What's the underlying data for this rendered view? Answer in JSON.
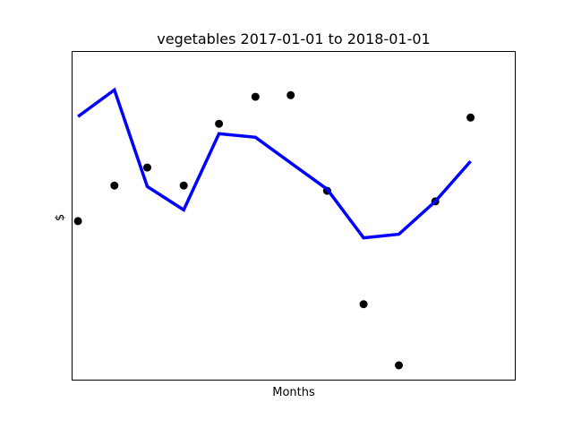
{
  "chart_data": {
    "type": "line",
    "title": "vegetables 2017-01-01 to 2018-01-01",
    "xlabel": "Months",
    "ylabel": "$",
    "x": [
      "2017-01-01",
      "2017-02-01",
      "2017-03-01",
      "2017-04-01",
      "2017-05-01",
      "2017-06-01",
      "2017-07-01",
      "2017-08-01",
      "2017-09-01",
      "2017-10-01",
      "2017-11-01",
      "2017-12-01"
    ],
    "xlim": [
      "2016-12-27",
      "2018-01-08"
    ],
    "ylim": [
      0,
      100
    ],
    "grid": false,
    "x_ticks_visible": false,
    "y_ticks_visible": false,
    "series": [
      {
        "style": "markers",
        "color": "#000000",
        "values": [
          48.4,
          59.2,
          64.7,
          59.2,
          78.0,
          86.2,
          86.7,
          57.6,
          23.1,
          4.5,
          54.4,
          79.9
        ]
      },
      {
        "style": "line",
        "color": "#0000ff",
        "values": [
          80.2,
          88.3,
          58.9,
          51.8,
          75.0,
          73.9,
          66.1,
          58.1,
          43.3,
          44.4,
          54.4,
          66.6
        ]
      }
    ]
  }
}
